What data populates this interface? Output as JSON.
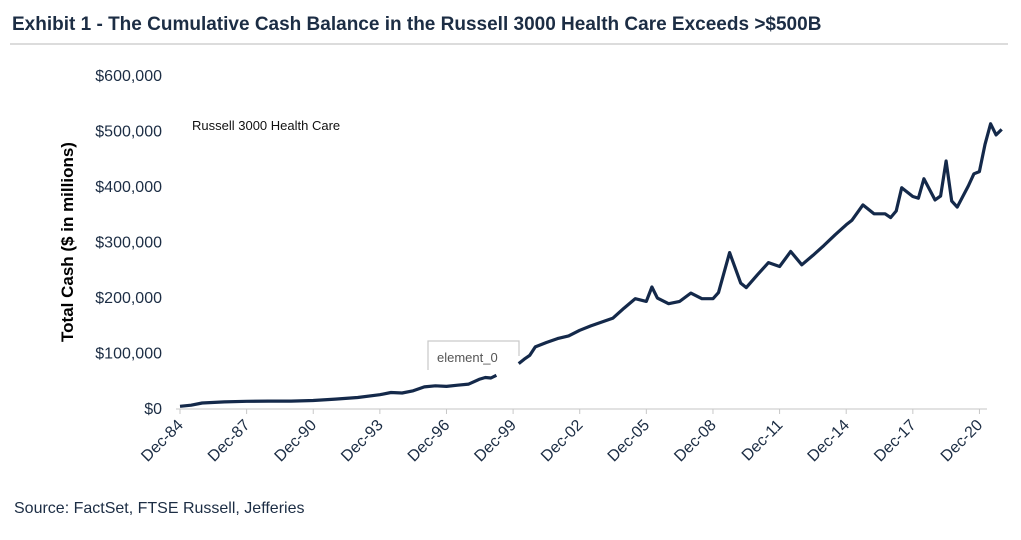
{
  "header": {
    "title": "Exhibit 1 - The Cumulative Cash Balance in the Russell 3000 Health Care Exceeds >$500B"
  },
  "footer": {
    "source": "Source: FactSet, FTSE Russell, Jefferies"
  },
  "colors": {
    "line": "#14294a",
    "text": "#1c2d44"
  },
  "chart_data": {
    "type": "line",
    "title": "Exhibit 1 - The Cumulative Cash Balance in the Russell 3000 Health Care Exceeds >$500B",
    "ylabel": "Total Cash ($ in millions)",
    "xlabel": "",
    "ylim": [
      0,
      600000
    ],
    "xlim": [
      "1984-12",
      "2021-03"
    ],
    "yticks": [
      "$0",
      "$100,000",
      "$200,000",
      "$300,000",
      "$400,000",
      "$500,000",
      "$600,000"
    ],
    "xticks": [
      "Dec-84",
      "Dec-87",
      "Dec-90",
      "Dec-93",
      "Dec-96",
      "Dec-99",
      "Dec-02",
      "Dec-05",
      "Dec-08",
      "Dec-11",
      "Dec-14",
      "Dec-17",
      "Dec-20"
    ],
    "annotation": "Russell 3000 Health Care",
    "label_box": "element_0",
    "grid": false,
    "series": [
      {
        "name": "Russell 3000 Health Care",
        "points": [
          [
            "1984-12",
            3000
          ],
          [
            "1985-06",
            5000
          ],
          [
            "1985-12",
            9000
          ],
          [
            "1986-12",
            11000
          ],
          [
            "1987-12",
            12000
          ],
          [
            "1988-12",
            12500
          ],
          [
            "1989-12",
            12500
          ],
          [
            "1990-12",
            13500
          ],
          [
            "1991-12",
            16000
          ],
          [
            "1992-12",
            19000
          ],
          [
            "1993-12",
            24000
          ],
          [
            "1994-06",
            28000
          ],
          [
            "1994-12",
            27000
          ],
          [
            "1995-06",
            31000
          ],
          [
            "1995-12",
            38000
          ],
          [
            "1996-06",
            40000
          ],
          [
            "1996-12",
            39000
          ],
          [
            "1997-06",
            41000
          ],
          [
            "1997-12",
            43000
          ],
          [
            "1998-06",
            52000
          ],
          [
            "1998-09",
            55000
          ],
          [
            "1998-12",
            54000
          ],
          [
            "1999-03",
            59000
          ]
        ]
      },
      {
        "name": "Russell 3000 Health Care",
        "points": [
          [
            "2000-03",
            80000
          ],
          [
            "2000-06",
            88000
          ],
          [
            "2000-09",
            95000
          ],
          [
            "2000-12",
            110000
          ],
          [
            "2001-06",
            118000
          ],
          [
            "2001-12",
            125000
          ],
          [
            "2002-06",
            130000
          ],
          [
            "2002-12",
            140000
          ],
          [
            "2003-06",
            148000
          ],
          [
            "2003-12",
            155000
          ],
          [
            "2004-06",
            162000
          ],
          [
            "2004-12",
            180000
          ],
          [
            "2005-06",
            197000
          ],
          [
            "2005-12",
            192000
          ],
          [
            "2006-03",
            218000
          ],
          [
            "2006-06",
            198000
          ],
          [
            "2006-12",
            188000
          ],
          [
            "2007-06",
            192000
          ],
          [
            "2007-12",
            207000
          ],
          [
            "2008-06",
            197000
          ],
          [
            "2008-12",
            197000
          ],
          [
            "2009-03",
            208000
          ],
          [
            "2009-09",
            280000
          ],
          [
            "2010-03",
            225000
          ],
          [
            "2010-06",
            217000
          ],
          [
            "2010-12",
            240000
          ],
          [
            "2011-06",
            262000
          ],
          [
            "2011-12",
            255000
          ],
          [
            "2012-06",
            282000
          ],
          [
            "2012-12",
            258000
          ],
          [
            "2013-06",
            275000
          ],
          [
            "2013-12",
            293000
          ],
          [
            "2014-06",
            312000
          ],
          [
            "2014-12",
            330000
          ],
          [
            "2015-03",
            338000
          ],
          [
            "2015-09",
            366000
          ],
          [
            "2016-03",
            350000
          ],
          [
            "2016-09",
            350000
          ],
          [
            "2016-12",
            343000
          ],
          [
            "2017-03",
            355000
          ],
          [
            "2017-06",
            397000
          ],
          [
            "2017-12",
            381000
          ],
          [
            "2018-03",
            378000
          ],
          [
            "2018-06",
            413000
          ],
          [
            "2018-12",
            375000
          ],
          [
            "2019-03",
            382000
          ],
          [
            "2019-06",
            445000
          ],
          [
            "2019-09",
            373000
          ],
          [
            "2019-12",
            362000
          ],
          [
            "2020-06",
            400000
          ],
          [
            "2020-09",
            422000
          ],
          [
            "2020-12",
            426000
          ],
          [
            "2021-03",
            475000
          ],
          [
            "2021-06",
            512000
          ],
          [
            "2021-09",
            492000
          ],
          [
            "2021-12",
            502000
          ]
        ]
      }
    ]
  }
}
